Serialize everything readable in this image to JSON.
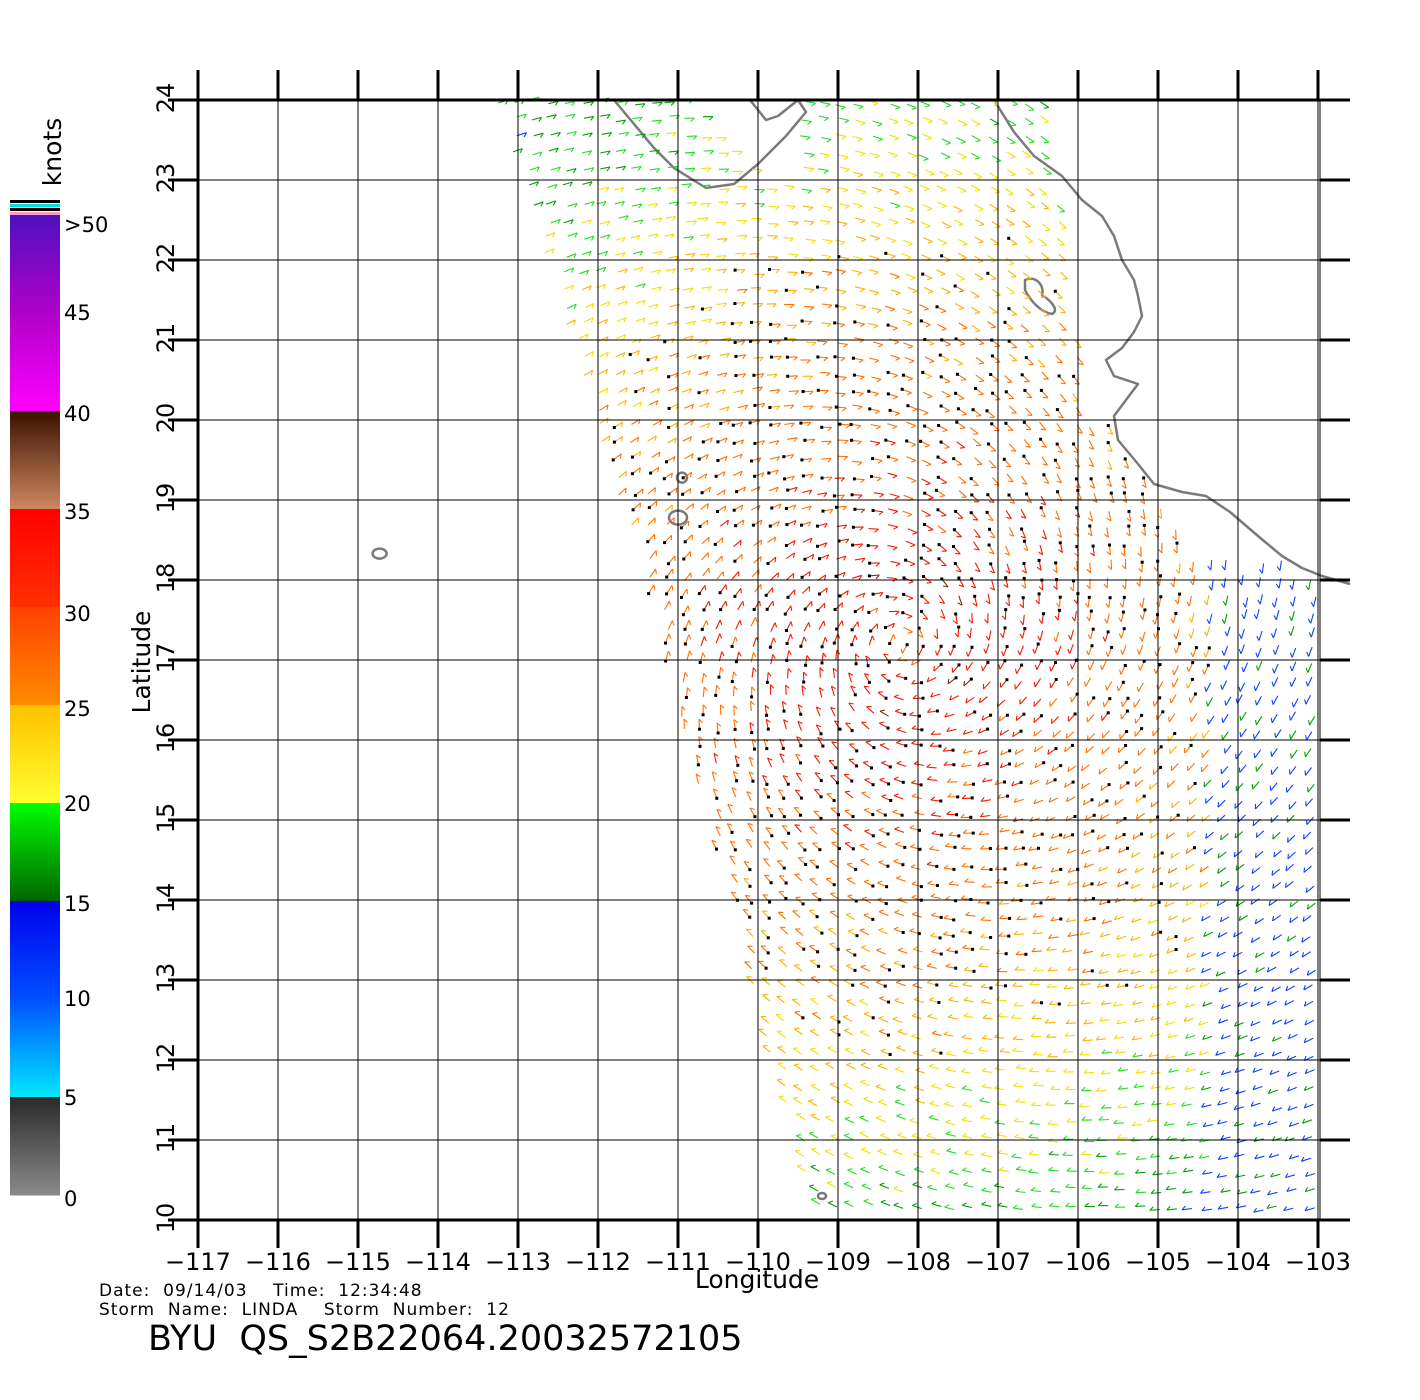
{
  "map": {
    "x_axis": {
      "label": "Longitude",
      "ticks": [
        "−117",
        "−116",
        "−115",
        "−114",
        "−113",
        "−112",
        "−111",
        "−110",
        "−109",
        "−108",
        "−107",
        "−106",
        "−105",
        "−104",
        "−103"
      ]
    },
    "y_axis": {
      "label": "Latitude",
      "ticks": [
        "10",
        "11",
        "12",
        "13",
        "14",
        "15",
        "16",
        "17",
        "18",
        "19",
        "20",
        "21",
        "22",
        "23",
        "24"
      ]
    },
    "lon_range": [
      -117,
      -102.6
    ],
    "lat_range": [
      10,
      24
    ]
  },
  "colorbar": {
    "unit": "knots",
    "labels": [
      ">50",
      "45",
      "40",
      "35",
      "30",
      "25",
      "20",
      "15",
      "10",
      "5",
      "0"
    ],
    "colors": {
      "0-5": [
        "#8a8a8a",
        "#2a2a2a"
      ],
      "5-10": [
        "#00e8ff",
        "#0050ff"
      ],
      "10-15": [
        "#0050ff",
        "#0000ee"
      ],
      "15-20": [
        "#006400",
        "#00ff00"
      ],
      "20-25": [
        "#ffff30",
        "#ffc000"
      ],
      "25-30": [
        "#ff8c00",
        "#ff4000"
      ],
      "30-35": [
        "#ff3000",
        "#ff0000"
      ],
      "35-40": [
        "#d08860",
        "#3a1000"
      ],
      "40-45": [
        "#ff00ff",
        "#b000c8"
      ],
      "45-50": [
        "#b000c8",
        "#5010c0"
      ]
    }
  },
  "info": {
    "date_line": "Date:  09/14/03    Time:  12:34:48",
    "storm_line": "Storm  Name:  LINDA    Storm  Number:  12"
  },
  "product_id": "BYU  QS_S2B22064.20032572105"
}
